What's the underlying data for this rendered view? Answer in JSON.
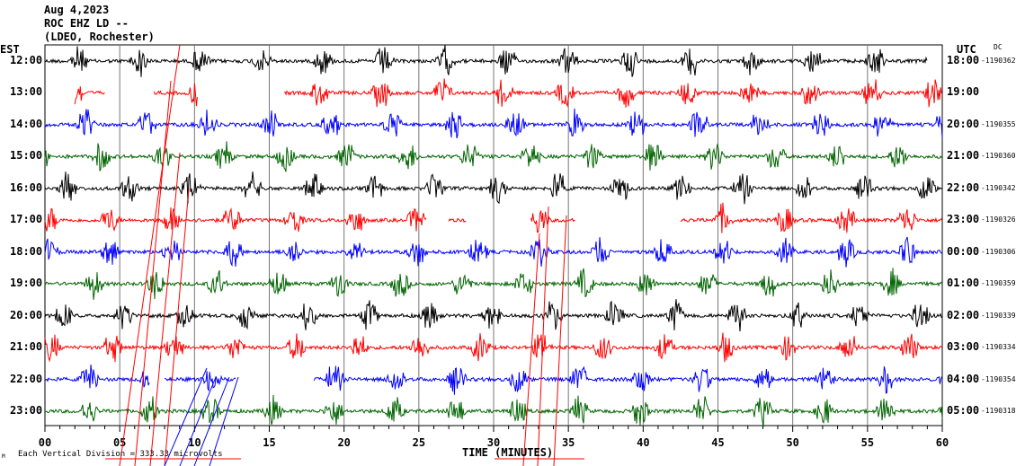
{
  "header": {
    "date": "Aug 4,2023",
    "station": "ROC EHZ LD --",
    "network": "(LDEO, Rochester)",
    "left_tz": "EST",
    "right_tz": "UTC",
    "dc_label": "DC"
  },
  "footer": {
    "scale_note": "Each Vertical Division =  333.33 microvolts",
    "corner_mark": "M"
  },
  "chart_data": {
    "type": "line",
    "title": "Aug 4,2023 ROC EHZ LD -- (LDEO, Rochester)",
    "xlabel": "TIME (MINUTES)",
    "xlim": [
      0,
      60
    ],
    "xticks": [
      "00",
      "05",
      "10",
      "15",
      "20",
      "25",
      "30",
      "35",
      "40",
      "45",
      "50",
      "55",
      "60"
    ],
    "grid": "vertical every 5 minutes",
    "colors": [
      "#000000",
      "#ff0000",
      "#0000ff",
      "#006400"
    ],
    "rows": [
      {
        "est": "12:00",
        "utc": "18:00",
        "dc": "-1190362",
        "segments": [
          [
            0,
            59
          ]
        ]
      },
      {
        "est": "13:00",
        "utc": "19:00",
        "dc": "",
        "segments": [
          [
            2,
            4
          ],
          [
            7.3,
            10.2
          ],
          [
            16,
            60
          ]
        ]
      },
      {
        "est": "14:00",
        "utc": "20:00",
        "dc": "-1190355",
        "segments": [
          [
            0,
            60
          ]
        ]
      },
      {
        "est": "15:00",
        "utc": "21:00",
        "dc": "-1190360",
        "segments": [
          [
            0,
            60
          ]
        ]
      },
      {
        "est": "16:00",
        "utc": "22:00",
        "dc": "-1190342",
        "segments": [
          [
            0,
            60
          ]
        ]
      },
      {
        "est": "17:00",
        "utc": "23:00",
        "dc": "-1190326",
        "segments": [
          [
            0,
            25.5
          ],
          [
            27,
            28.2
          ],
          [
            32.5,
            35.5
          ],
          [
            42.5,
            60
          ]
        ]
      },
      {
        "est": "18:00",
        "utc": "00:00",
        "dc": "-1190306",
        "segments": [
          [
            0,
            60
          ]
        ]
      },
      {
        "est": "19:00",
        "utc": "01:00",
        "dc": "-1190359",
        "segments": [
          [
            0,
            60
          ]
        ]
      },
      {
        "est": "20:00",
        "utc": "02:00",
        "dc": "-1190339",
        "segments": [
          [
            0,
            60
          ]
        ]
      },
      {
        "est": "21:00",
        "utc": "03:00",
        "dc": "-1190334",
        "segments": [
          [
            0,
            60
          ]
        ]
      },
      {
        "est": "22:00",
        "utc": "04:00",
        "dc": "-1190354",
        "segments": [
          [
            0,
            7
          ],
          [
            8,
            12.8
          ],
          [
            18,
            60
          ]
        ]
      },
      {
        "est": "23:00",
        "utc": "05:00",
        "dc": "-1190318",
        "segments": [
          [
            0,
            60
          ]
        ]
      }
    ]
  }
}
